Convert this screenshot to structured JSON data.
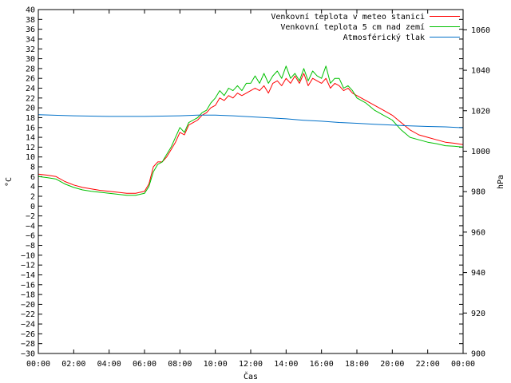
{
  "chart_data": {
    "type": "line",
    "xlabel": "Čas",
    "ylabel": "°C",
    "y2label": "hPa",
    "x_ticks": [
      "00:00",
      "02:00",
      "04:00",
      "06:00",
      "08:00",
      "10:00",
      "12:00",
      "14:00",
      "16:00",
      "18:00",
      "20:00",
      "22:00",
      "00:00"
    ],
    "xlim_hours": [
      0,
      24
    ],
    "ylim": [
      -30,
      40
    ],
    "y_tick_step": 2,
    "y2lim": [
      900,
      1070
    ],
    "y2_ticks": [
      900,
      920,
      940,
      960,
      980,
      1000,
      1020,
      1040,
      1060
    ],
    "grid": false,
    "legend_position": "top-right",
    "series": [
      {
        "name": "Venkovní teplota v meteo stanici",
        "axis": "left",
        "color": "#ff0000",
        "x_hours": [
          0,
          0.5,
          1,
          1.5,
          2,
          2.5,
          3,
          3.5,
          4,
          4.5,
          5,
          5.5,
          6,
          6.25,
          6.5,
          6.75,
          7,
          7.25,
          7.5,
          7.75,
          8,
          8.25,
          8.5,
          8.75,
          9,
          9.25,
          9.5,
          9.75,
          10,
          10.25,
          10.5,
          10.75,
          11,
          11.25,
          11.5,
          11.75,
          12,
          12.25,
          12.5,
          12.75,
          13,
          13.25,
          13.5,
          13.75,
          14,
          14.25,
          14.5,
          14.75,
          15,
          15.25,
          15.5,
          15.75,
          16,
          16.25,
          16.5,
          16.75,
          17,
          17.25,
          17.5,
          17.75,
          18,
          18.5,
          19,
          19.5,
          20,
          20.5,
          21,
          21.5,
          22,
          22.5,
          23,
          23.5,
          24
        ],
        "values": [
          6.5,
          6.3,
          6.0,
          5.0,
          4.3,
          3.8,
          3.5,
          3.2,
          3.0,
          2.8,
          2.6,
          2.6,
          3.0,
          4.5,
          8.0,
          9.0,
          9.0,
          10.0,
          11.5,
          13.0,
          15.0,
          14.5,
          16.5,
          17.0,
          17.5,
          18.5,
          19.0,
          20.0,
          20.5,
          22.0,
          21.5,
          22.5,
          22.0,
          23.0,
          22.5,
          23.0,
          23.5,
          24.0,
          23.5,
          24.5,
          23.0,
          25.0,
          25.5,
          24.5,
          26.0,
          25.0,
          26.5,
          25.0,
          27.0,
          24.5,
          26.0,
          25.5,
          25.0,
          26.0,
          24.0,
          25.0,
          24.5,
          23.5,
          24.0,
          23.0,
          22.5,
          21.5,
          20.5,
          19.5,
          18.5,
          17.0,
          15.5,
          14.5,
          14.0,
          13.5,
          13.0,
          12.8,
          12.5
        ]
      },
      {
        "name": "Venkovní teplota 5 cm nad zemí",
        "axis": "left",
        "color": "#00c000",
        "x_hours": [
          0,
          0.5,
          1,
          1.5,
          2,
          2.5,
          3,
          3.5,
          4,
          4.5,
          5,
          5.5,
          6,
          6.25,
          6.5,
          6.75,
          7,
          7.25,
          7.5,
          7.75,
          8,
          8.25,
          8.5,
          8.75,
          9,
          9.25,
          9.5,
          9.75,
          10,
          10.25,
          10.5,
          10.75,
          11,
          11.25,
          11.5,
          11.75,
          12,
          12.25,
          12.5,
          12.75,
          13,
          13.25,
          13.5,
          13.75,
          14,
          14.25,
          14.5,
          14.75,
          15,
          15.25,
          15.5,
          15.75,
          16,
          16.25,
          16.5,
          16.75,
          17,
          17.25,
          17.5,
          17.75,
          18,
          18.5,
          19,
          19.5,
          20,
          20.5,
          21,
          21.5,
          22,
          22.5,
          23,
          23.5,
          24
        ],
        "values": [
          6.0,
          5.8,
          5.5,
          4.5,
          3.8,
          3.3,
          3.0,
          2.8,
          2.6,
          2.4,
          2.2,
          2.2,
          2.6,
          4.0,
          7.0,
          8.5,
          9.0,
          10.5,
          12.0,
          14.0,
          16.0,
          15.0,
          17.0,
          17.5,
          18.0,
          19.0,
          19.5,
          21.0,
          22.0,
          23.5,
          22.5,
          24.0,
          23.5,
          24.5,
          23.5,
          25.0,
          25.0,
          26.5,
          25.0,
          27.0,
          25.0,
          26.5,
          27.5,
          26.0,
          28.5,
          26.0,
          27.0,
          25.5,
          28.0,
          25.5,
          27.5,
          26.5,
          26.0,
          28.5,
          25.0,
          26.0,
          26.0,
          24.0,
          24.5,
          23.5,
          22.0,
          21.0,
          19.5,
          18.5,
          17.5,
          15.5,
          14.0,
          13.5,
          13.0,
          12.7,
          12.3,
          12.2,
          12.0
        ]
      },
      {
        "name": "Atmosférický tlak",
        "axis": "right",
        "color": "#0070c8",
        "x_hours": [
          0,
          2,
          4,
          6,
          8,
          9,
          10,
          11,
          12,
          13,
          14,
          15,
          16,
          17,
          18,
          19,
          20,
          21,
          22,
          23,
          24
        ],
        "values": [
          1018.0,
          1017.5,
          1017.2,
          1017.2,
          1017.5,
          1017.8,
          1017.8,
          1017.5,
          1017.0,
          1016.5,
          1016.0,
          1015.3,
          1014.8,
          1014.2,
          1013.8,
          1013.3,
          1012.9,
          1012.5,
          1012.2,
          1012.0,
          1011.6
        ]
      }
    ]
  }
}
